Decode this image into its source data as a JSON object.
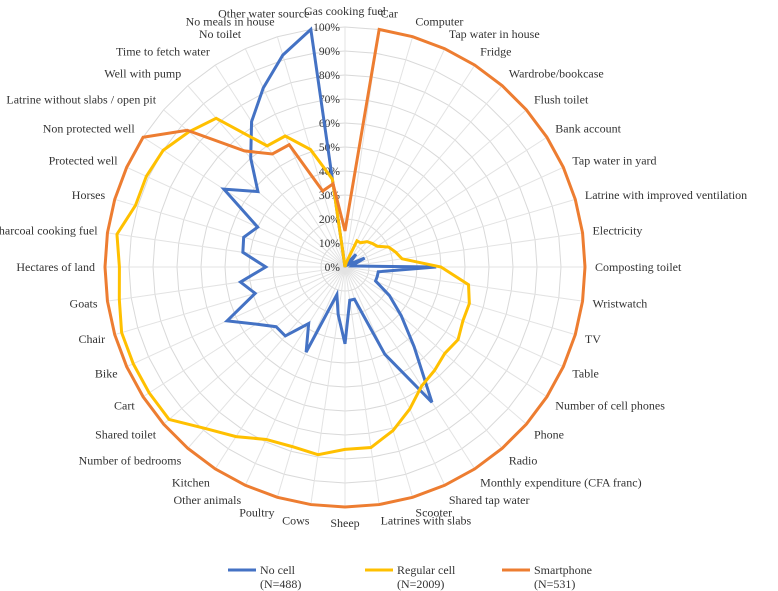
{
  "chart_data": {
    "type": "radar",
    "title": "",
    "radial_axis": {
      "min": 0,
      "max": 100,
      "step": 10,
      "unit": "%"
    },
    "radial_ticks": [
      "0%",
      "10%",
      "20%",
      "30%",
      "40%",
      "50%",
      "60%",
      "70%",
      "80%",
      "90%",
      "100%"
    ],
    "grid": true,
    "legend_position": "bottom",
    "categories": [
      "Gas cooking fuel",
      "Car",
      "Computer",
      "Tap water in house",
      "Fridge",
      "Wardrobe/bookcase",
      "Flush toilet",
      "Bank account",
      "Tap water in yard",
      "Latrine with improved ventilation",
      "Electricity",
      "Composting toilet",
      "Wristwatch",
      "TV",
      "Table",
      "Number of cell phones",
      "Phone",
      "Radio",
      "Monthly expenditure (CFA franc)",
      "Shared tap water",
      "Scooter",
      "Latrines with slabs",
      "Sheep",
      "Cows",
      "Poultry",
      "Other animals",
      "Kitchen",
      "Number of bedrooms",
      "Shared toilet",
      "Cart",
      "Bike",
      "Chair",
      "Goats",
      "Hectares of land",
      "Charcoal cooking fuel",
      "Horses",
      "Protected well",
      "Non protected well",
      "Latrine without slabs / open pit",
      "Well with pump",
      "Time to fetch water",
      "No toilet",
      "No meals in house",
      "Other water source"
    ],
    "series": [
      {
        "name": "No cell",
        "legend_label": "No cell",
        "legend_sublabel": "(N=488)",
        "color": "#4472C4",
        "values": [
          0,
          0,
          2,
          2,
          2,
          7,
          3,
          2,
          9,
          4,
          3,
          38,
          14,
          14,
          14,
          22,
          31,
          44,
          67,
          40,
          14,
          14,
          32,
          20,
          12,
          39,
          28,
          38,
          38,
          44,
          54,
          39,
          44,
          33,
          43,
          44,
          40,
          60,
          48,
          60,
          72,
          82,
          92,
          100
        ]
      },
      {
        "name": "Regular cell",
        "legend_label": "Regular cell",
        "legend_sublabel": "(N=2009)",
        "color": "#FFC000",
        "values": [
          0,
          0,
          2,
          12,
          12,
          14,
          15,
          16,
          20,
          22,
          24,
          40,
          52,
          54,
          54,
          56,
          55,
          57,
          59,
          65,
          71,
          76,
          76,
          79,
          78,
          79,
          84,
          89,
          97,
          97,
          97,
          97,
          95,
          94,
          96,
          91,
          91,
          90,
          86,
          82,
          60,
          60,
          51,
          37
        ]
      },
      {
        "name": "Smartphone",
        "legend_label": "Smartphone",
        "legend_sublabel": "(N=531)",
        "color": "#ED7D31",
        "values": [
          15,
          100,
          100,
          100,
          100,
          100,
          100,
          100,
          100,
          100,
          100,
          100,
          100,
          100,
          100,
          100,
          100,
          100,
          100,
          100,
          100,
          100,
          100,
          100,
          100,
          100,
          100,
          100,
          100,
          100,
          100,
          100,
          100,
          100,
          100,
          100,
          100,
          100,
          87,
          64,
          56,
          56,
          33,
          35
        ]
      }
    ]
  }
}
